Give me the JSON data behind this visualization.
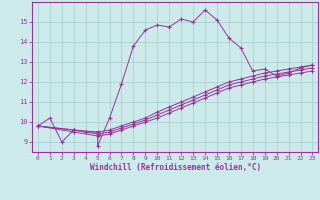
{
  "xlabel": "Windchill (Refroidissement éolien,°C)",
  "background_color": "#cceaea",
  "grid_color": "#aad0d0",
  "line_color": "#993399",
  "xlim": [
    -0.5,
    23.5
  ],
  "ylim": [
    8.5,
    16.0
  ],
  "xticks": [
    0,
    1,
    2,
    3,
    4,
    5,
    6,
    7,
    8,
    9,
    10,
    11,
    12,
    13,
    14,
    15,
    16,
    17,
    18,
    19,
    20,
    21,
    22,
    23
  ],
  "yticks": [
    9,
    10,
    11,
    12,
    13,
    14,
    15
  ],
  "series1_x": [
    0,
    1,
    2,
    3,
    4,
    5,
    5,
    6,
    7,
    8,
    9,
    10,
    11,
    12,
    13,
    14,
    15,
    16,
    17,
    18,
    19,
    20,
    21,
    22,
    23
  ],
  "series1_y": [
    9.8,
    10.2,
    9.0,
    9.6,
    9.5,
    9.5,
    8.8,
    10.2,
    11.9,
    13.8,
    14.6,
    14.85,
    14.75,
    15.15,
    15.0,
    15.6,
    15.1,
    14.2,
    13.7,
    12.55,
    12.65,
    12.3,
    12.45,
    12.7,
    12.85
  ],
  "series2_x": [
    0,
    3,
    5,
    6,
    7,
    8,
    9,
    10,
    11,
    12,
    13,
    14,
    15,
    16,
    17,
    18,
    19,
    20,
    21,
    22,
    23
  ],
  "series2_y": [
    9.8,
    9.6,
    9.5,
    9.6,
    9.8,
    10.0,
    10.2,
    10.5,
    10.75,
    11.0,
    11.25,
    11.5,
    11.75,
    12.0,
    12.15,
    12.3,
    12.45,
    12.55,
    12.65,
    12.75,
    12.85
  ],
  "series3_x": [
    0,
    3,
    5,
    6,
    7,
    8,
    9,
    10,
    11,
    12,
    13,
    14,
    15,
    16,
    17,
    18,
    19,
    20,
    21,
    22,
    23
  ],
  "series3_y": [
    9.8,
    9.6,
    9.4,
    9.5,
    9.7,
    9.9,
    10.1,
    10.35,
    10.6,
    10.85,
    11.1,
    11.35,
    11.6,
    11.85,
    12.0,
    12.15,
    12.3,
    12.4,
    12.5,
    12.6,
    12.7
  ],
  "series4_x": [
    0,
    3,
    5,
    6,
    7,
    8,
    9,
    10,
    11,
    12,
    13,
    14,
    15,
    16,
    17,
    18,
    19,
    20,
    21,
    22,
    23
  ],
  "series4_y": [
    9.8,
    9.5,
    9.3,
    9.4,
    9.6,
    9.8,
    10.0,
    10.2,
    10.45,
    10.7,
    10.95,
    11.2,
    11.45,
    11.7,
    11.85,
    12.0,
    12.15,
    12.25,
    12.35,
    12.45,
    12.55
  ]
}
